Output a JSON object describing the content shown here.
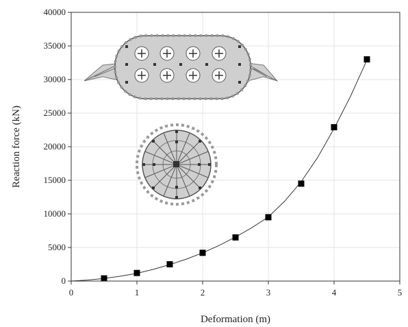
{
  "chart_data": {
    "type": "scatter",
    "xlabel": "Deformation (m)",
    "ylabel": "Reaction force (kN)",
    "xlim": [
      0,
      5
    ],
    "ylim": [
      0,
      40000
    ],
    "x_ticks": [
      0,
      1,
      2,
      3,
      4,
      5
    ],
    "x_tick_labels": [
      "0",
      "1",
      "2",
      "3",
      "4",
      "5"
    ],
    "y_ticks": [
      0,
      5000,
      10000,
      15000,
      20000,
      25000,
      30000,
      35000,
      40000
    ],
    "y_tick_labels": [
      "0",
      "5000",
      "10000",
      "15000",
      "20000",
      "25000",
      "30000",
      "35000",
      "40000"
    ],
    "grid": true,
    "marker": "square",
    "series": [
      {
        "x": [
          0.5,
          1.0,
          1.5,
          2.0,
          2.5,
          3.0,
          3.5,
          4.0,
          4.5
        ],
        "y": [
          400,
          1200,
          2500,
          4200,
          6500,
          9500,
          14500,
          22900,
          33000
        ]
      }
    ],
    "fit_curve": {
      "x": [
        0,
        0.25,
        0.5,
        0.75,
        1.0,
        1.25,
        1.5,
        1.75,
        2.0,
        2.25,
        2.5,
        2.75,
        3.0,
        3.25,
        3.5,
        3.75,
        4.0,
        4.25,
        4.5
      ],
      "y": [
        0,
        150,
        380,
        720,
        1150,
        1750,
        2450,
        3250,
        4200,
        5300,
        6550,
        7950,
        9550,
        11900,
        14800,
        18400,
        22700,
        27500,
        32900
      ]
    },
    "colors": {
      "marker": "#000000",
      "line": "#333333",
      "fender_fill": "#cfcfcf",
      "fender_stroke": "#555555"
    },
    "insets": [
      "fender-side-view-illustration",
      "fender-cross-section-illustration"
    ]
  }
}
